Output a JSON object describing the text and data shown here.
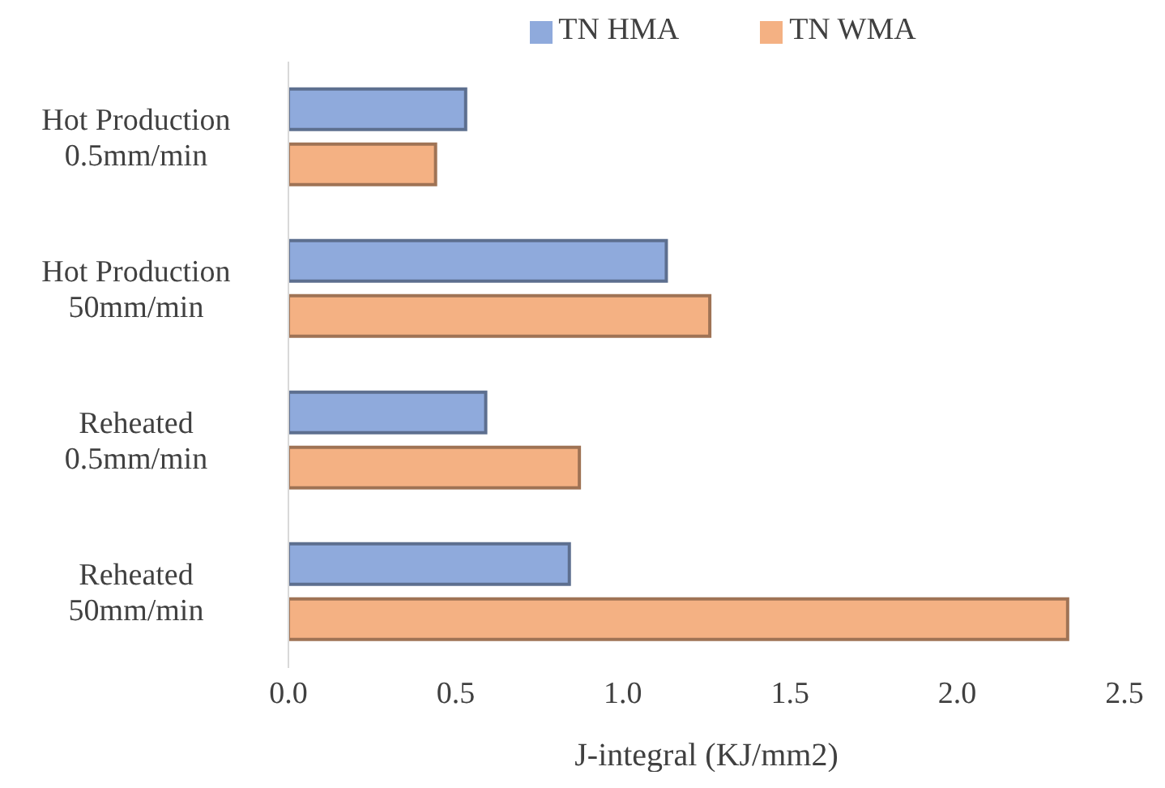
{
  "chart_data": {
    "type": "bar",
    "orientation": "horizontal",
    "xlabel": "J-integral (KJ/mm2)",
    "categories": [
      "Hot Production 0.5mm/min",
      "Hot Production 50mm/min",
      "Reheated 0.5mm/min",
      "Reheated 50mm/min"
    ],
    "series": [
      {
        "name": "TN HMA",
        "color": "#8faadc",
        "values": [
          0.53,
          1.13,
          0.59,
          0.84
        ]
      },
      {
        "name": "TN WMA",
        "color": "#f4b183",
        "values": [
          0.44,
          1.26,
          0.87,
          2.33
        ]
      }
    ],
    "xlim": [
      0,
      2.5
    ],
    "xticks": [
      {
        "value": 0,
        "label": "0.0"
      },
      {
        "value": 0.5,
        "label": "0.5"
      },
      {
        "value": 1,
        "label": "1.0"
      },
      {
        "value": 1.5,
        "label": "1.5"
      },
      {
        "value": 2,
        "label": "2.0"
      },
      {
        "value": 2.5,
        "label": "2.5"
      }
    ],
    "legend": "top",
    "grid": false
  }
}
